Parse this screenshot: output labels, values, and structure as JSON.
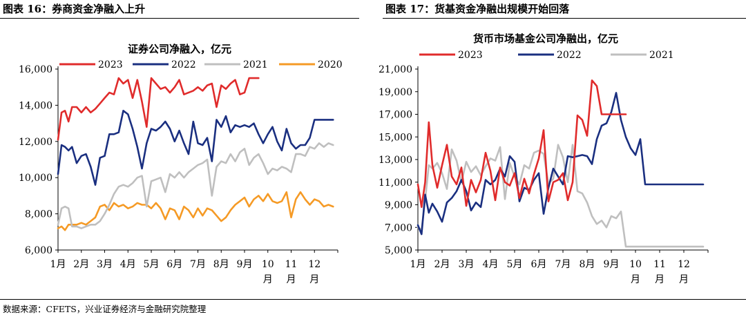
{
  "left_panel": {
    "header": "图表 16：券商资金净融入上升"
  },
  "right_panel": {
    "header": "图表 17：货基资金净融出规模开始回落"
  },
  "source": "数据来源：CFETS，兴业证券经济与金融研究院整理",
  "chart_data": [
    {
      "type": "line",
      "title": "证券公司净融入，亿元",
      "x_unit": "month",
      "x_ticks": [
        "1月",
        "2月",
        "3月",
        "4月",
        "5月",
        "6月",
        "7月",
        "8月",
        "9月",
        "10\n月",
        "11\n月",
        "12\n月"
      ],
      "ylim": [
        6000,
        16000
      ],
      "yticks": [
        "6,000",
        "8,000",
        "10,000",
        "12,000",
        "14,000",
        "16,000"
      ],
      "ytick_values": [
        6000,
        8000,
        10000,
        12000,
        14000,
        16000
      ],
      "legend_placement": "top",
      "grid": false,
      "series": [
        {
          "name": "2023",
          "color": "#e02b2b",
          "x": [
            1.0,
            1.15,
            1.3,
            1.45,
            1.6,
            1.8,
            2.0,
            2.2,
            2.4,
            2.6,
            2.8,
            3.0,
            3.2,
            3.4,
            3.6,
            3.8,
            4.0,
            4.2,
            4.4,
            4.6,
            4.8,
            5.0,
            5.2,
            5.4,
            5.6,
            5.8,
            6.0,
            6.2,
            6.4,
            6.6,
            6.8,
            7.0,
            7.2,
            7.4,
            7.6,
            7.8,
            8.0,
            8.2,
            8.4,
            8.6,
            8.8,
            9.0,
            9.2,
            9.4,
            9.6
          ],
          "y": [
            12100,
            13600,
            13700,
            13100,
            13900,
            13900,
            13600,
            13900,
            13600,
            13800,
            14100,
            14400,
            14700,
            14600,
            15500,
            15200,
            15400,
            14400,
            15400,
            14200,
            12800,
            15500,
            15200,
            14900,
            15000,
            14700,
            15000,
            15400,
            14600,
            14700,
            14800,
            15000,
            14800,
            15100,
            15200,
            13900,
            15100,
            14900,
            15200,
            15400,
            14600,
            14700,
            15500,
            15500,
            15500
          ]
        },
        {
          "name": "2022",
          "color": "#1a2f80",
          "x": [
            1.0,
            1.15,
            1.3,
            1.45,
            1.6,
            1.8,
            2.0,
            2.2,
            2.4,
            2.6,
            2.8,
            3.0,
            3.2,
            3.4,
            3.6,
            3.8,
            4.0,
            4.2,
            4.4,
            4.6,
            4.8,
            5.0,
            5.2,
            5.4,
            5.6,
            5.8,
            6.0,
            6.2,
            6.4,
            6.6,
            6.8,
            7.0,
            7.2,
            7.4,
            7.6,
            7.8,
            8.0,
            8.2,
            8.4,
            8.6,
            8.8,
            9.0,
            9.2,
            9.4,
            9.6,
            9.8,
            10.0,
            10.2,
            10.4,
            10.6,
            10.8,
            11.0,
            11.2,
            11.4,
            11.6,
            11.8,
            12.0,
            12.2,
            12.4,
            12.6,
            12.8
          ],
          "y": [
            10200,
            11800,
            11700,
            11500,
            11700,
            10800,
            11200,
            11300,
            10600,
            9600,
            11100,
            11200,
            12400,
            12400,
            12500,
            13700,
            13500,
            12700,
            11700,
            10500,
            11900,
            12700,
            12600,
            12800,
            13100,
            12700,
            12000,
            12600,
            11900,
            11300,
            13100,
            11900,
            11800,
            12200,
            10900,
            13200,
            12800,
            13400,
            12500,
            12900,
            12800,
            12900,
            12800,
            13000,
            12400,
            11900,
            12400,
            12800,
            12000,
            11500,
            12700,
            11900,
            11600,
            11800,
            11800,
            12200,
            13200,
            13200,
            13200,
            13200,
            13200
          ]
        },
        {
          "name": "2021",
          "color": "#bfbfbf",
          "x": [
            1.0,
            1.15,
            1.3,
            1.45,
            1.6,
            1.8,
            2.0,
            2.2,
            2.4,
            2.6,
            2.8,
            3.0,
            3.2,
            3.4,
            3.6,
            3.8,
            4.0,
            4.2,
            4.4,
            4.6,
            4.8,
            5.0,
            5.2,
            5.4,
            5.6,
            5.8,
            6.0,
            6.2,
            6.4,
            6.6,
            6.8,
            7.0,
            7.2,
            7.4,
            7.6,
            7.8,
            8.0,
            8.2,
            8.4,
            8.6,
            8.8,
            9.0,
            9.2,
            9.4,
            9.6,
            9.8,
            10.0,
            10.2,
            10.4,
            10.6,
            10.8,
            11.0,
            11.2,
            11.4,
            11.6,
            11.8,
            12.0,
            12.2,
            12.4,
            12.6,
            12.8
          ],
          "y": [
            7400,
            8300,
            8400,
            8300,
            7300,
            7300,
            7200,
            7300,
            7400,
            7400,
            7600,
            8000,
            8500,
            9100,
            9500,
            9600,
            9500,
            9700,
            10000,
            10100,
            8400,
            9800,
            9900,
            10000,
            9200,
            10200,
            10000,
            10300,
            10000,
            10300,
            10500,
            10700,
            10800,
            11000,
            9000,
            10600,
            10900,
            10800,
            11300,
            10900,
            11400,
            11600,
            10700,
            11100,
            11300,
            10800,
            10200,
            10500,
            10400,
            10600,
            10500,
            10300,
            11300,
            11300,
            11200,
            11700,
            11600,
            11900,
            11700,
            11900,
            11800
          ]
        },
        {
          "name": "2020",
          "color": "#f59a25",
          "x": [
            1.0,
            1.15,
            1.3,
            1.45,
            1.6,
            1.8,
            2.0,
            2.2,
            2.4,
            2.6,
            2.8,
            3.0,
            3.2,
            3.4,
            3.6,
            3.8,
            4.0,
            4.2,
            4.4,
            4.6,
            4.8,
            5.0,
            5.2,
            5.4,
            5.6,
            5.8,
            6.0,
            6.2,
            6.4,
            6.6,
            6.8,
            7.0,
            7.2,
            7.4,
            7.6,
            7.8,
            8.0,
            8.2,
            8.4,
            8.6,
            8.8,
            9.0,
            9.2,
            9.4,
            9.6,
            9.8,
            10.0,
            10.2,
            10.4,
            10.6,
            10.8,
            11.0,
            11.2,
            11.4,
            11.6,
            11.8,
            12.0,
            12.2,
            12.4,
            12.6,
            12.8
          ],
          "y": [
            7200,
            7300,
            7100,
            7400,
            7400,
            7400,
            7500,
            7400,
            7600,
            7800,
            8400,
            8500,
            8200,
            8600,
            8400,
            8500,
            8300,
            8400,
            8600,
            8500,
            8500,
            8300,
            8600,
            8300,
            7700,
            8300,
            8200,
            7700,
            8400,
            8200,
            7800,
            8300,
            7900,
            8300,
            8200,
            7900,
            7600,
            7800,
            8200,
            8500,
            8700,
            8900,
            8400,
            8800,
            9000,
            8700,
            9100,
            8700,
            8600,
            8700,
            9200,
            7800,
            8800,
            9200,
            8800,
            8500,
            8800,
            8700,
            8400,
            8500,
            8400
          ]
        }
      ]
    },
    {
      "type": "line",
      "title": "货币市场基金公司净融出，亿元",
      "x_unit": "month",
      "x_ticks": [
        "1月",
        "2月",
        "3月",
        "4月",
        "5月",
        "6月",
        "7月",
        "8月",
        "9月",
        "10\n月",
        "11\n月",
        "12\n月"
      ],
      "ylim": [
        5000,
        21000
      ],
      "yticks": [
        "5,000",
        "7,000",
        "9,000",
        "11,000",
        "13,000",
        "15,000",
        "17,000",
        "19,000",
        "21,000"
      ],
      "ytick_values": [
        5000,
        7000,
        9000,
        11000,
        13000,
        15000,
        17000,
        19000,
        21000
      ],
      "legend_placement": "top",
      "grid": false,
      "series": [
        {
          "name": "2023",
          "color": "#e02b2b",
          "x": [
            1.0,
            1.15,
            1.3,
            1.45,
            1.6,
            1.8,
            2.0,
            2.2,
            2.4,
            2.6,
            2.8,
            3.0,
            3.2,
            3.4,
            3.6,
            3.8,
            4.0,
            4.2,
            4.4,
            4.6,
            4.8,
            5.0,
            5.2,
            5.4,
            5.6,
            5.8,
            6.0,
            6.2,
            6.4,
            6.6,
            6.8,
            7.0,
            7.2,
            7.4,
            7.6,
            7.8,
            8.0,
            8.2,
            8.4,
            8.6,
            8.8,
            9.0,
            9.2,
            9.4,
            9.6
          ],
          "y": [
            10800,
            8800,
            11000,
            16300,
            12500,
            10500,
            12500,
            14300,
            11500,
            10800,
            12300,
            8900,
            11200,
            10100,
            11200,
            13600,
            12000,
            9400,
            12300,
            11000,
            10700,
            11800,
            9600,
            11300,
            10000,
            11700,
            13100,
            15600,
            9300,
            11000,
            11200,
            11800,
            9400,
            11000,
            16900,
            16500,
            15100,
            20000,
            19500,
            17000,
            17000,
            17000,
            17000,
            17000,
            17000
          ]
        },
        {
          "name": "2022",
          "color": "#1a2f80",
          "x": [
            1.0,
            1.15,
            1.3,
            1.45,
            1.6,
            1.8,
            2.0,
            2.2,
            2.4,
            2.6,
            2.8,
            3.0,
            3.2,
            3.4,
            3.6,
            3.8,
            4.0,
            4.2,
            4.4,
            4.6,
            4.8,
            5.0,
            5.2,
            5.4,
            5.6,
            5.8,
            6.0,
            6.2,
            6.4,
            6.6,
            6.8,
            7.0,
            7.2,
            7.4,
            7.6,
            7.8,
            8.0,
            8.2,
            8.4,
            8.6,
            8.8,
            9.0,
            9.2,
            9.4,
            9.6,
            9.8,
            10.0,
            10.2,
            10.4,
            10.6,
            10.8,
            11.0,
            11.2,
            11.4,
            11.6,
            11.8,
            12.0,
            12.2,
            12.4,
            12.6,
            12.8
          ],
          "y": [
            7200,
            6400,
            9900,
            8300,
            9100,
            8400,
            7500,
            9200,
            9600,
            10200,
            11200,
            10200,
            8500,
            9200,
            8800,
            11200,
            10800,
            11200,
            12200,
            11500,
            13300,
            12800,
            9300,
            10500,
            10300,
            11200,
            11800,
            8200,
            10500,
            12200,
            11500,
            10800,
            13300,
            13200,
            13300,
            13400,
            13300,
            12600,
            14800,
            16000,
            16200,
            17200,
            18900,
            16500,
            15000,
            14000,
            13400,
            14800,
            10800,
            10800,
            10800,
            10800,
            10800,
            10800,
            10800,
            10800,
            10800,
            10800,
            10800,
            10800,
            10800
          ]
        },
        {
          "name": "2021",
          "color": "#bfbfbf",
          "x": [
            1.0,
            1.15,
            1.3,
            1.45,
            1.6,
            1.8,
            2.0,
            2.2,
            2.4,
            2.6,
            2.8,
            3.0,
            3.2,
            3.4,
            3.6,
            3.8,
            4.0,
            4.2,
            4.4,
            4.6,
            4.8,
            5.0,
            5.2,
            5.4,
            5.6,
            5.8,
            6.0,
            6.2,
            6.4,
            6.6,
            6.8,
            7.0,
            7.2,
            7.4,
            7.6,
            7.8,
            8.0,
            8.2,
            8.4,
            8.6,
            8.8,
            9.0,
            9.2,
            9.4,
            9.6,
            9.8,
            10.0,
            10.2,
            10.4,
            10.6,
            10.8,
            11.0,
            11.2,
            11.4,
            11.6,
            11.8,
            12.0,
            12.2,
            12.4,
            12.6,
            12.8
          ],
          "y": [
            7000,
            6800,
            9400,
            12500,
            12200,
            12700,
            11800,
            10400,
            13900,
            12900,
            11000,
            12800,
            11900,
            12400,
            11600,
            12400,
            13100,
            12900,
            14100,
            9500,
            12700,
            11500,
            10800,
            12500,
            12200,
            13600,
            13800,
            13500,
            10900,
            11300,
            14300,
            13200,
            11000,
            14300,
            10200,
            10000,
            9200,
            8000,
            7300,
            7600,
            7000,
            8000,
            7800,
            8400,
            5300,
            5300,
            5300,
            5300,
            5300,
            5300,
            5300,
            5300,
            5300,
            5300,
            5300,
            5300,
            5300,
            5300,
            5300,
            5300,
            5300
          ]
        }
      ]
    }
  ]
}
